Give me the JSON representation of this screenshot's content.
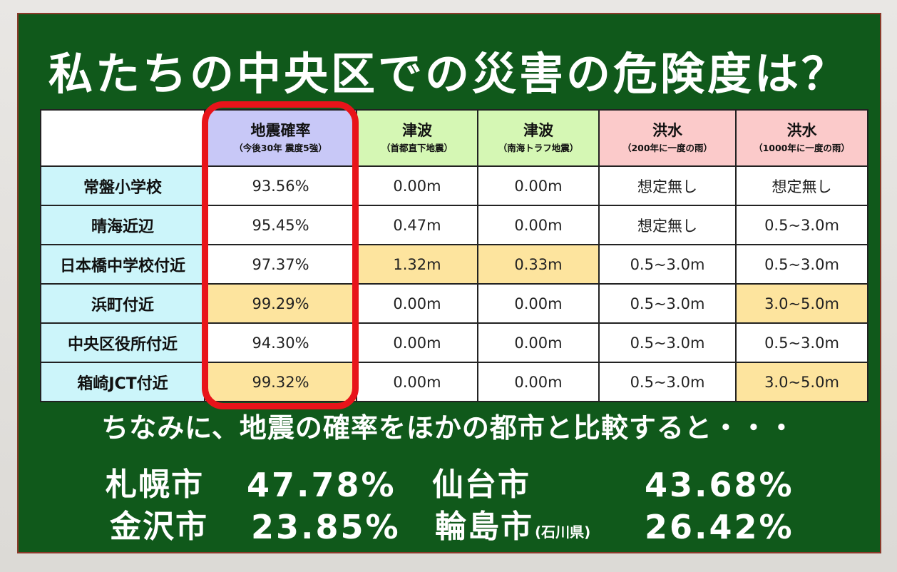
{
  "title": "私たちの中央区での災害の危険度は？",
  "table": {
    "headers": [
      {
        "main": "",
        "sub": ""
      },
      {
        "main": "地震確率",
        "sub": "（今後30年 震度5強）"
      },
      {
        "main": "津波",
        "sub": "（首都直下地震）"
      },
      {
        "main": "津波",
        "sub": "（南海トラフ地震）"
      },
      {
        "main": "洪水",
        "sub": "（200年に一度の雨）"
      },
      {
        "main": "洪水",
        "sub": "（1000年に一度の雨）"
      }
    ],
    "rows": [
      {
        "name": "常盤小学校",
        "cells": [
          "93.56%",
          "0.00m",
          "0.00m",
          "想定無し",
          "想定無し"
        ],
        "highlight": [
          false,
          false,
          false,
          false,
          false
        ]
      },
      {
        "name": "晴海近辺",
        "cells": [
          "95.45%",
          "0.47m",
          "0.00m",
          "想定無し",
          "0.5~3.0m"
        ],
        "highlight": [
          false,
          false,
          false,
          false,
          false
        ]
      },
      {
        "name": "日本橋中学校付近",
        "cells": [
          "97.37%",
          "1.32m",
          "0.33m",
          "0.5~3.0m",
          "0.5~3.0m"
        ],
        "highlight": [
          false,
          true,
          true,
          false,
          false
        ]
      },
      {
        "name": "浜町付近",
        "cells": [
          "99.29%",
          "0.00m",
          "0.00m",
          "0.5~3.0m",
          "3.0~5.0m"
        ],
        "highlight": [
          true,
          false,
          false,
          false,
          true
        ]
      },
      {
        "name": "中央区役所付近",
        "cells": [
          "94.30%",
          "0.00m",
          "0.00m",
          "0.5~3.0m",
          "0.5~3.0m"
        ],
        "highlight": [
          false,
          false,
          false,
          false,
          false
        ]
      },
      {
        "name": "箱崎JCT付近",
        "cells": [
          "99.32%",
          "0.00m",
          "0.00m",
          "0.5~3.0m",
          "3.0~5.0m"
        ],
        "highlight": [
          true,
          false,
          false,
          false,
          true
        ]
      }
    ]
  },
  "comparison": {
    "intro": "ちなみに、地震の確率をほかの都市と比較すると・・・",
    "cities": [
      {
        "name": "札幌市",
        "note": "",
        "value": "47.78%"
      },
      {
        "name": "仙台市",
        "note": "",
        "value": "43.68%"
      },
      {
        "name": "金沢市",
        "note": "",
        "value": "23.85%"
      },
      {
        "name": "輪島市",
        "note": "(石川県)",
        "value": "26.42%"
      }
    ]
  },
  "colors": {
    "board": "#10591b",
    "highlight_cell": "#fde49e",
    "quake_header": "#c8c8f7",
    "tsunami_header": "#d5f7b4",
    "flood_header": "#fbcaca",
    "location_cell": "#ccf5fa",
    "emphasis_outline": "#e8141a"
  }
}
